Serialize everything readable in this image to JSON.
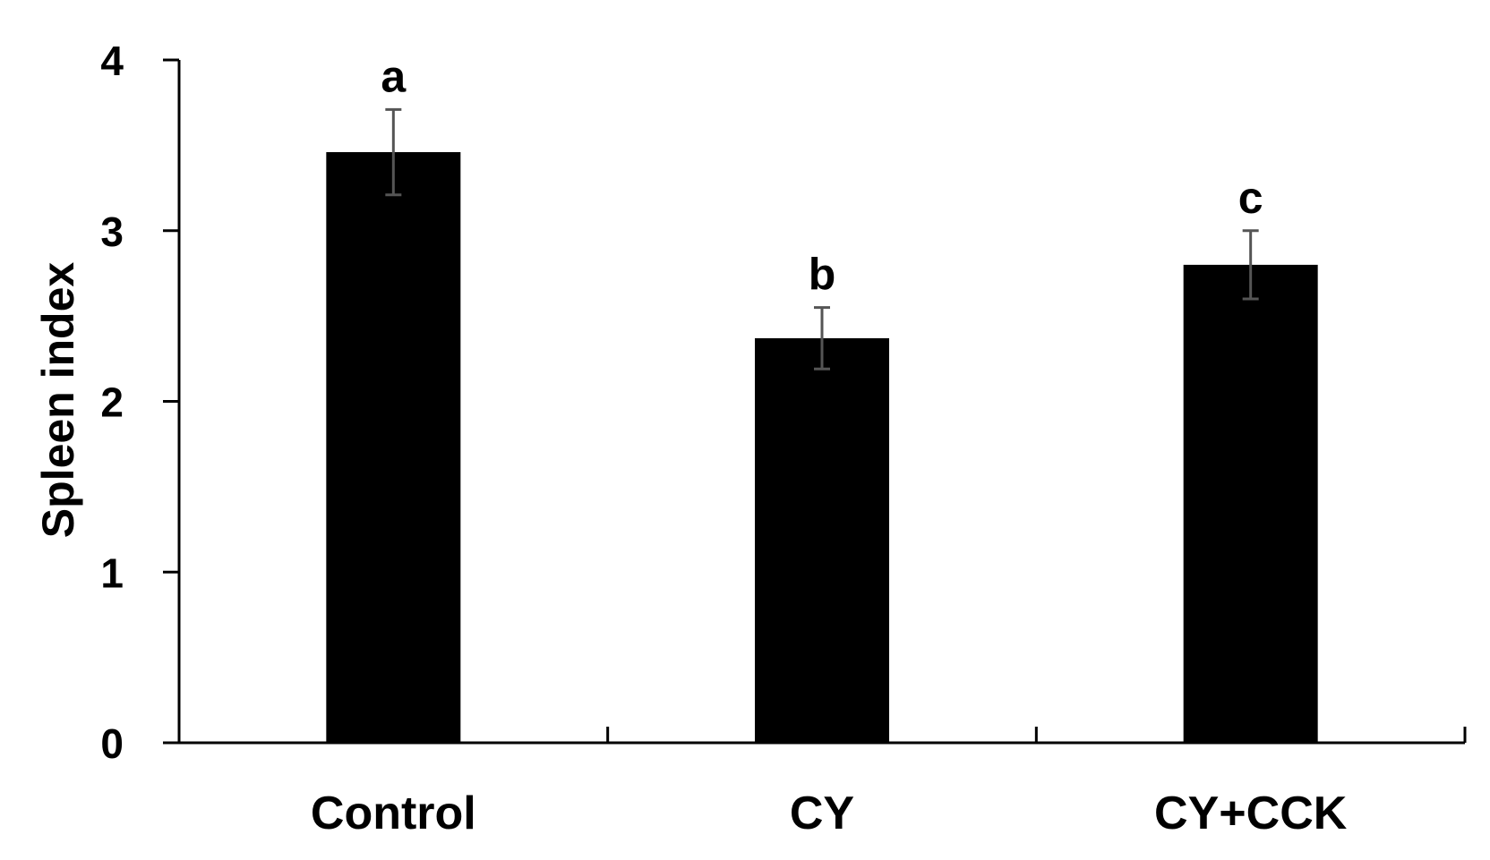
{
  "chart_data": {
    "type": "bar",
    "categories": [
      "Control",
      "CY",
      "CY+CCK"
    ],
    "values": [
      3.46,
      2.37,
      2.8
    ],
    "error_bars": [
      0.25,
      0.18,
      0.2
    ],
    "annotations": [
      "a",
      "b",
      "c"
    ],
    "ylabel": "Spleen index",
    "xlabel": "",
    "ylim": [
      0,
      4
    ],
    "yticks": [
      "0",
      "1",
      "2",
      "3",
      "4"
    ],
    "grid": false,
    "bar_color": "#000000",
    "error_bar_color": "#555555"
  }
}
